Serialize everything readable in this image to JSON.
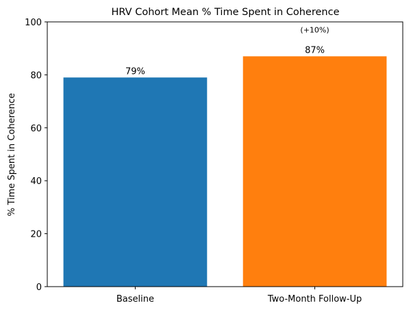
{
  "chart_data": {
    "type": "bar",
    "title": "HRV Cohort Mean % Time Spent in Coherence",
    "xlabel": "",
    "ylabel": "% Time Spent in Coherence",
    "ylim": [
      0,
      100
    ],
    "yticks": [
      0,
      20,
      40,
      60,
      80,
      100
    ],
    "categories": [
      "Baseline",
      "Two-Month Follow-Up"
    ],
    "values": [
      79,
      87
    ],
    "value_labels": [
      "79%",
      "87%"
    ],
    "colors": [
      "#1f77b4",
      "#ff7f0e"
    ],
    "annotations": [
      {
        "category": "Two-Month Follow-Up",
        "text": "(+10%)",
        "y": 97
      }
    ],
    "grid": false,
    "legend": "none"
  }
}
